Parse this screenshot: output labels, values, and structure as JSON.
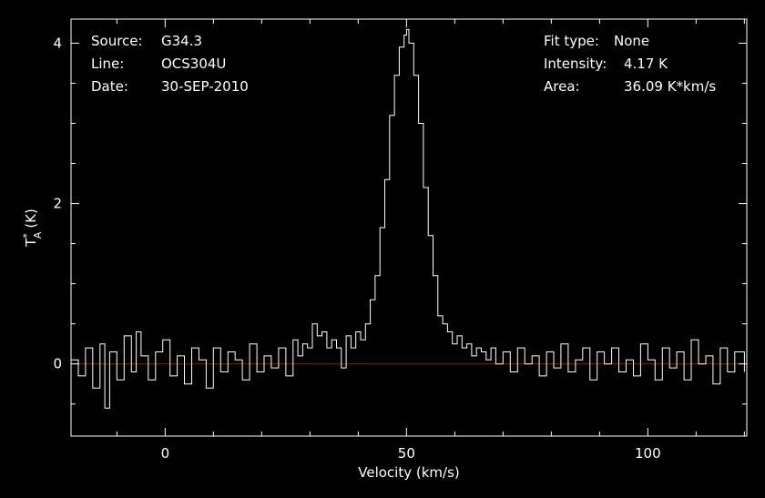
{
  "header": {
    "left": [
      {
        "key": "Source:",
        "value": "G34.3"
      },
      {
        "key": "Line:",
        "value": "OCS304U"
      },
      {
        "key": "Date:",
        "value": "30-SEP-2010"
      }
    ],
    "right": [
      {
        "key": "Fit type:",
        "value": "None"
      },
      {
        "key": "Intensity:",
        "value": "4.17 K"
      },
      {
        "key": "Area:",
        "value": "36.09 K*km/s"
      }
    ]
  },
  "chart_data": {
    "type": "line",
    "title": "",
    "xlabel": "Velocity (km/s)",
    "ylabel_main": "T",
    "ylabel_sup": "*",
    "ylabel_sub": "A",
    "ylabel_unit": "(K)",
    "xlim": [
      -19.5,
      120.5
    ],
    "ylim": [
      -0.9,
      4.3
    ],
    "xticks": [
      0,
      50,
      100
    ],
    "yticks": [
      0,
      2,
      4
    ],
    "grid": false,
    "colors": {
      "spectrum": "#ffffff",
      "baseline": "#cc0000",
      "axes": "#ffffff",
      "background": "#000000"
    },
    "baseline_y": 0,
    "peak": {
      "x": 50.1,
      "y": 4.17
    },
    "series": [
      {
        "x": [
          -19.4,
          -18.0,
          -16.5,
          -15.0,
          -13.5,
          -12.5,
          -11.5,
          -10.0,
          -8.5,
          -7.0,
          -6.0,
          -5.0,
          -3.5,
          -2.0,
          -0.5,
          1.0,
          2.5,
          4.0,
          5.5,
          7.0,
          8.5,
          10.0,
          11.5,
          13.0,
          14.5,
          16.0,
          17.5,
          19.0,
          20.5,
          22.0,
          23.5,
          25.0,
          26.5,
          27.5,
          28.5,
          29.5,
          30.5,
          31.5,
          32.5,
          33.5,
          34.5,
          35.5,
          36.5,
          37.5,
          38.5,
          39.5,
          40.5,
          41.5,
          42.5,
          43.5,
          44.5,
          45.5,
          46.5,
          47.5,
          48.5,
          49.5,
          50.0,
          50.5,
          51.5,
          52.5,
          53.5,
          54.5,
          55.5,
          56.5,
          57.5,
          58.5,
          59.5,
          60.5,
          61.5,
          62.5,
          63.5,
          64.5,
          65.5,
          66.5,
          67.5,
          68.5,
          70.0,
          71.5,
          73.0,
          74.5,
          76.0,
          77.5,
          79.0,
          80.5,
          82.0,
          83.5,
          85.0,
          86.5,
          88.0,
          89.5,
          91.0,
          92.5,
          94.0,
          95.5,
          97.0,
          98.5,
          100.0,
          101.5,
          103.0,
          104.5,
          106.0,
          107.5,
          109.0,
          110.5,
          112.0,
          113.5,
          115.0,
          116.5,
          118.0,
          120.0
        ],
        "y": [
          0.05,
          -0.15,
          0.2,
          -0.3,
          0.25,
          -0.55,
          0.15,
          -0.2,
          0.35,
          -0.1,
          0.4,
          0.1,
          -0.2,
          0.15,
          0.3,
          -0.15,
          0.1,
          -0.25,
          0.2,
          0.05,
          -0.3,
          0.2,
          -0.1,
          0.15,
          0.05,
          -0.2,
          0.25,
          -0.1,
          0.1,
          -0.05,
          0.2,
          -0.15,
          0.3,
          0.1,
          0.25,
          0.2,
          0.5,
          0.35,
          0.4,
          0.2,
          0.3,
          0.2,
          -0.05,
          0.35,
          0.2,
          0.4,
          0.3,
          0.5,
          0.8,
          1.1,
          1.7,
          2.3,
          3.1,
          3.6,
          3.95,
          4.1,
          4.17,
          4.0,
          3.6,
          3.0,
          2.2,
          1.6,
          1.1,
          0.6,
          0.5,
          0.4,
          0.25,
          0.35,
          0.2,
          0.25,
          0.1,
          0.2,
          0.15,
          0.05,
          0.2,
          0.0,
          0.15,
          -0.1,
          0.2,
          0.0,
          0.1,
          -0.15,
          0.15,
          -0.05,
          0.25,
          -0.1,
          0.05,
          0.2,
          -0.2,
          0.15,
          0.0,
          0.2,
          -0.1,
          0.05,
          -0.15,
          0.25,
          0.05,
          -0.2,
          0.2,
          -0.05,
          0.15,
          -0.2,
          0.3,
          0.0,
          0.1,
          -0.25,
          0.2,
          -0.1,
          0.15,
          -0.1
        ]
      }
    ]
  }
}
